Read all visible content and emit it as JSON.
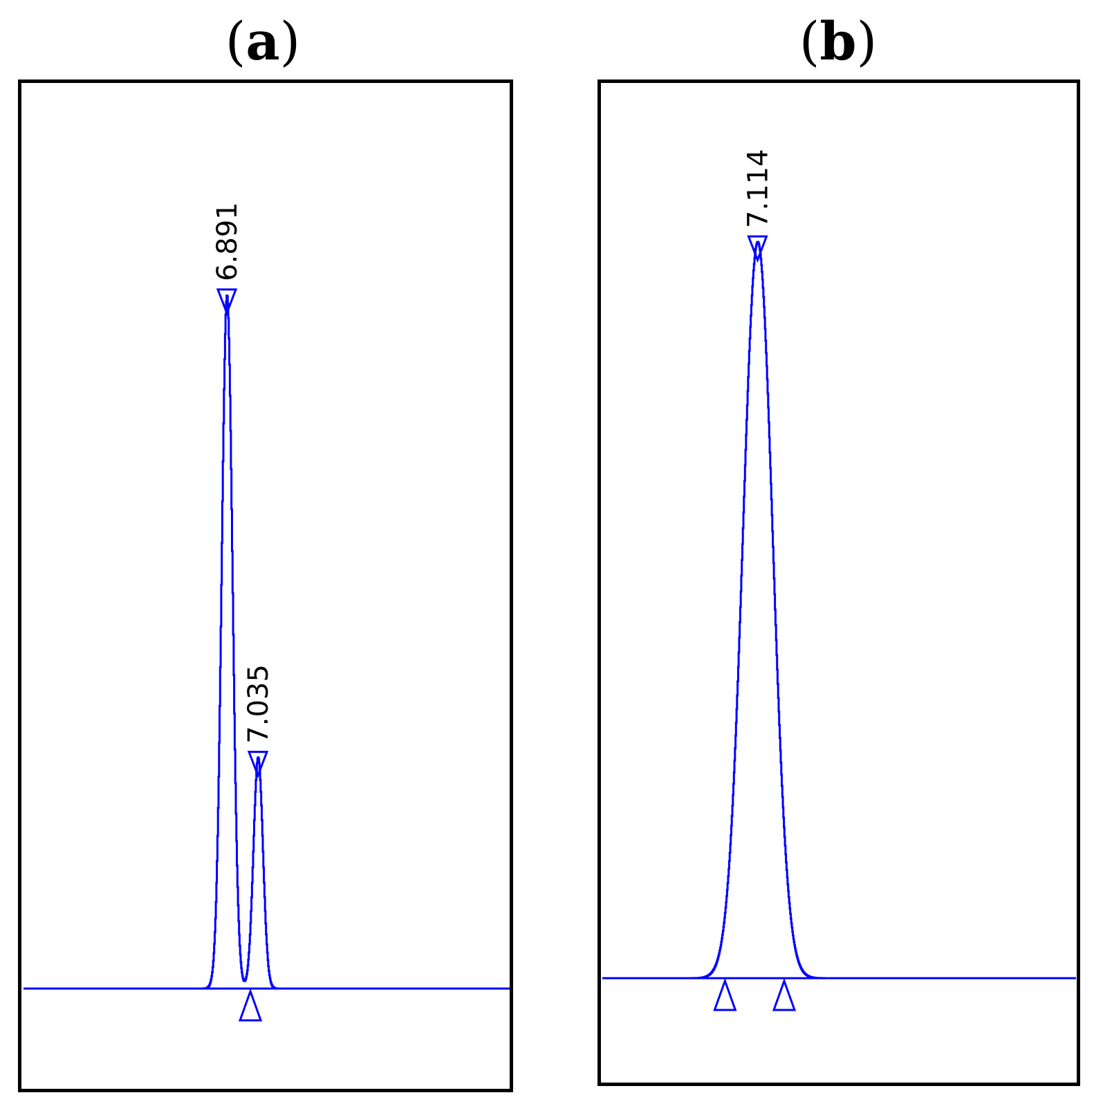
{
  "panels": [
    {
      "label_open": "(",
      "label_letter": "a",
      "label_close": ")"
    },
    {
      "label_open": "(",
      "label_letter": "b",
      "label_close": ")"
    }
  ],
  "colors": {
    "trace": "#0000ff",
    "frame": "#000000",
    "background": "#ffffff"
  },
  "chart_data": [
    {
      "type": "line",
      "title": "(a)",
      "x_unit": "min",
      "xlim": [
        5.95,
        8.2
      ],
      "ylim": [
        -0.02,
        1.0
      ],
      "peaks": [
        {
          "rt": 6.891,
          "label": "6.891",
          "height": 0.96,
          "sigma": 0.025
        },
        {
          "rt": 7.035,
          "label": "7.035",
          "height": 0.32,
          "sigma": 0.022
        }
      ],
      "baseline_markers": [
        7.0
      ],
      "grid": false
    },
    {
      "type": "line",
      "title": "(b)",
      "x_unit": "min",
      "xlim": [
        6.38,
        8.62
      ],
      "ylim": [
        -0.02,
        1.0
      ],
      "peaks": [
        {
          "rt": 7.114,
          "label": "7.114",
          "height": 1.0,
          "sigma": 0.07
        }
      ],
      "baseline_markers": [
        6.96,
        7.24
      ],
      "grid": false
    }
  ]
}
